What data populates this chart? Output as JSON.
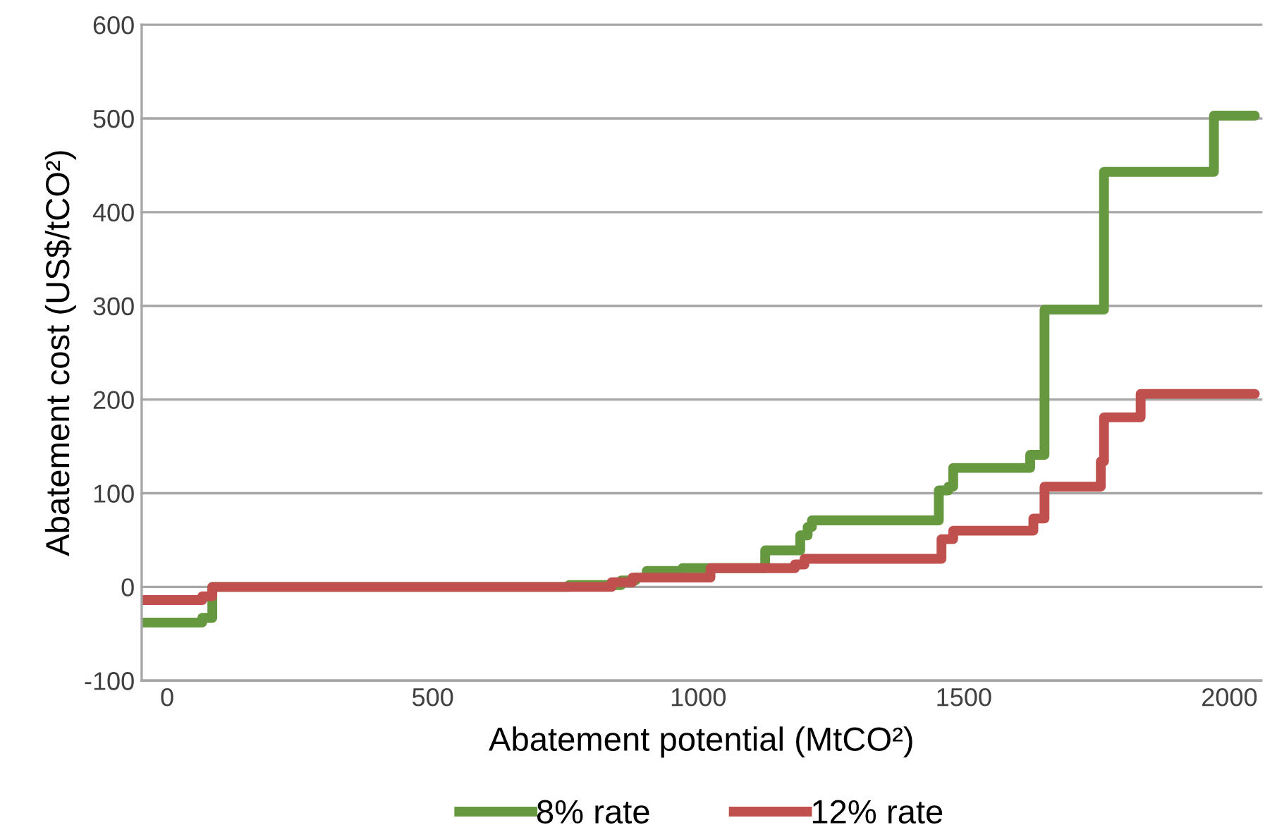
{
  "chart_data": {
    "type": "step",
    "xlabel": "Abatement potential (MtCO²)",
    "ylabel": "Abatement cost (US$/tCO²)",
    "xlim": [
      -48,
      2060
    ],
    "xticks": [
      0,
      500,
      1000,
      1500,
      2000
    ],
    "ylim": [
      -100,
      600
    ],
    "yticks": [
      -100,
      0,
      100,
      200,
      300,
      400,
      500,
      600
    ],
    "grid": "y",
    "legend": "bottom",
    "line_style": "solid",
    "series": [
      {
        "name": "8% rate",
        "color": "#66983f",
        "x": [
          -48,
          66,
          85,
          757,
          855,
          882,
          903,
          970,
          1126,
          1192,
          1206,
          1214,
          1453,
          1471,
          1480,
          1625,
          1652,
          1764,
          1971,
          2048
        ],
        "values": [
          -38,
          -33,
          0,
          2,
          7,
          10,
          17,
          20,
          39,
          55,
          64,
          71,
          103,
          107,
          127,
          141,
          296,
          443,
          503,
          503
        ]
      },
      {
        "name": "12% rate",
        "color": "#c0504d",
        "x": [
          -48,
          66,
          85,
          837,
          876,
          1023,
          1182,
          1200,
          1458,
          1480,
          1631,
          1652,
          1758,
          1764,
          1833,
          2048
        ],
        "values": [
          -14,
          -10,
          0,
          5,
          10,
          20,
          24,
          30,
          51,
          60,
          73,
          107,
          134,
          181,
          206,
          206
        ]
      }
    ]
  }
}
